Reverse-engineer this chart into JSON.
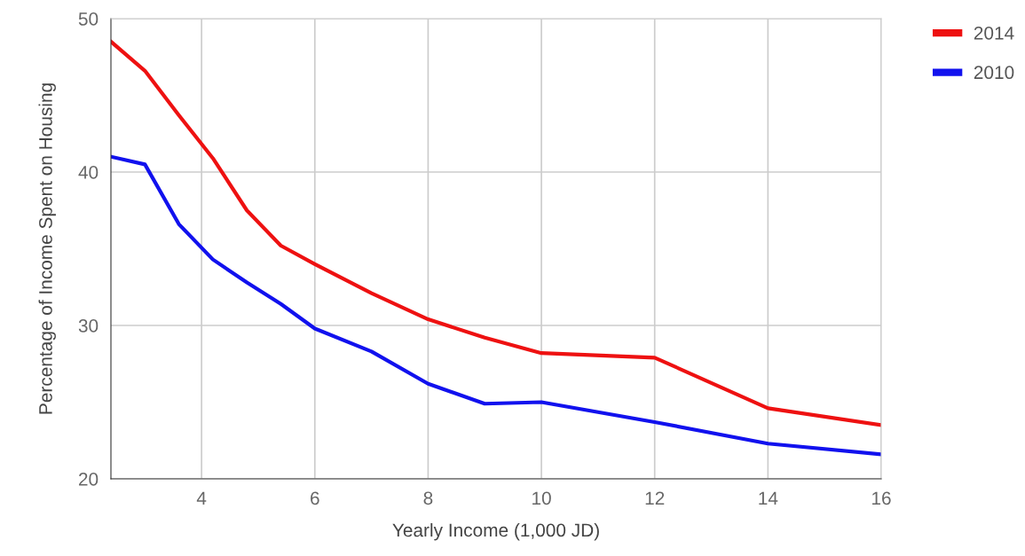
{
  "chart_data": {
    "type": "line",
    "xlabel": "Yearly Income (1,000 JD)",
    "ylabel": "Percentage of Income Spent on Housing",
    "x": [
      2.4,
      3.0,
      3.6,
      4.2,
      4.8,
      5.4,
      6,
      7,
      8,
      9,
      10,
      12,
      14,
      16
    ],
    "series": [
      {
        "name": "2014",
        "color": "#ee1111",
        "values": [
          48.5,
          46.6,
          43.7,
          40.9,
          37.5,
          35.2,
          34.0,
          32.1,
          30.4,
          29.2,
          28.2,
          27.9,
          24.6,
          23.5
        ]
      },
      {
        "name": "2010",
        "color": "#1111ee",
        "values": [
          41.0,
          40.5,
          36.6,
          34.3,
          32.8,
          31.4,
          29.8,
          28.3,
          26.2,
          24.9,
          25.0,
          23.7,
          22.3,
          21.6
        ]
      }
    ],
    "xlim": [
      2.4,
      16
    ],
    "xticks": [
      4,
      6,
      8,
      10,
      12,
      14,
      16
    ],
    "ylim": [
      20,
      50
    ],
    "yticks": [
      20,
      30,
      40,
      50
    ],
    "grid": true,
    "legend": "top right",
    "marker": "none",
    "line_style": "solid"
  }
}
